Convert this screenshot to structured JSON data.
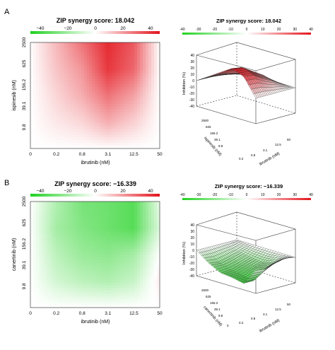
{
  "panels": [
    {
      "letter": "A",
      "score_label": "ZIP synergy score: 18.042"
    },
    {
      "letter": "B",
      "score_label": "ZIP synergy score: −16.339"
    }
  ],
  "colors": {
    "negative": "#1fd11f",
    "neutral": "#ffffff",
    "positive": "#e3141c",
    "text": "#111111"
  },
  "chart_data": [
    {
      "type": "heatmap",
      "title": "ZIP synergy score: 18.042",
      "xlabel": "ibrutinib (nM)",
      "ylabel": "ispinesib (nM)",
      "x_ticks": [
        "0",
        "0.2",
        "0.8",
        "3.1",
        "12.5",
        "50"
      ],
      "y_ticks": [
        "9.8",
        "39.1",
        "156.2",
        "625",
        "2500"
      ],
      "colorbar_ticks": [
        "−40",
        "−20",
        "0",
        "20",
        "40"
      ],
      "colorbar_range": [
        -40,
        40
      ],
      "grid": false,
      "values": [
        [
          0,
          0,
          0,
          0,
          0,
          0
        ],
        [
          0,
          4,
          7,
          14,
          8,
          0
        ],
        [
          0,
          7,
          14,
          24,
          16,
          0
        ],
        [
          0,
          10,
          18,
          34,
          26,
          0
        ],
        [
          0,
          12,
          24,
          36,
          28,
          0
        ]
      ]
    },
    {
      "type": "surface",
      "title": "ZIP synergy score: 18.042",
      "xlabel": "ibrutinib (nM)",
      "ylabel": "ispinesib (nM)",
      "zlabel": "Inhibition (%)",
      "z_ticks": [
        "-40",
        "-30",
        "-20",
        "-10",
        "0",
        "10",
        "20",
        "30",
        "40"
      ],
      "x_ticks": [
        "0",
        "0.2",
        "0.8",
        "3.1",
        "12.5",
        "50"
      ],
      "y_ticks": [
        "9.8",
        "39.1",
        "156.2",
        "625",
        "2500"
      ],
      "colorbar_ticks": [
        "-40",
        "-30",
        "-20",
        "-10",
        "0",
        "10",
        "20",
        "30",
        "40"
      ],
      "zlim": [
        -40,
        40
      ]
    },
    {
      "type": "heatmap",
      "title": "ZIP synergy score: −16.339",
      "xlabel": "ibrutinib (nM)",
      "ylabel": "canertinib (nM)",
      "x_ticks": [
        "0",
        "0.2",
        "0.8",
        "3.1",
        "12.5",
        "50"
      ],
      "y_ticks": [
        "9.8",
        "39.1",
        "156.2",
        "625",
        "2500"
      ],
      "colorbar_ticks": [
        "−40",
        "−20",
        "0",
        "20",
        "40"
      ],
      "colorbar_range": [
        -40,
        40
      ],
      "grid": false,
      "values": [
        [
          0,
          0,
          0,
          0,
          0,
          0
        ],
        [
          0,
          -8,
          -12,
          -14,
          -10,
          3
        ],
        [
          0,
          -12,
          -18,
          -20,
          -16,
          0
        ],
        [
          0,
          -16,
          -22,
          -26,
          -30,
          -6
        ],
        [
          0,
          -14,
          -24,
          -26,
          -30,
          -4
        ]
      ]
    },
    {
      "type": "surface",
      "title": "ZIP synergy score: −16.339",
      "xlabel": "ibrutinib (nM)",
      "ylabel": "canertinib (nM)",
      "zlabel": "Inhibition (%)",
      "z_ticks": [
        "-40",
        "-30",
        "-20",
        "-10",
        "0",
        "10",
        "20",
        "30",
        "40"
      ],
      "x_ticks": [
        "0",
        "0.2",
        "0.8",
        "3.1",
        "12.5",
        "50"
      ],
      "y_ticks": [
        "9.8",
        "39.1",
        "156.2",
        "625",
        "2500"
      ],
      "colorbar_ticks": [
        "-40",
        "-30",
        "-20",
        "-10",
        "0",
        "10",
        "20",
        "30",
        "40"
      ],
      "zlim": [
        -40,
        40
      ]
    }
  ]
}
